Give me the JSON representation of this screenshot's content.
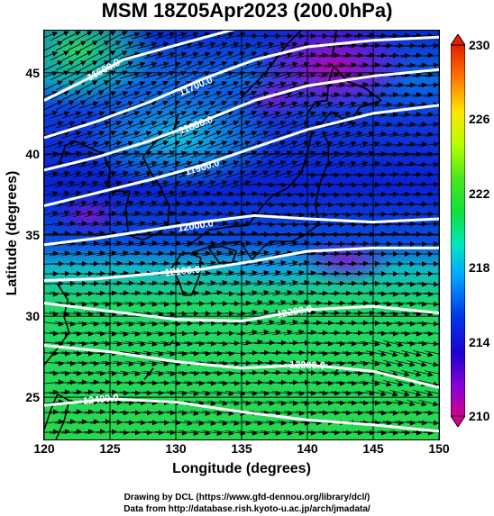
{
  "title": "MSM 18Z05Apr2023 (200.0hPa)",
  "map": {
    "xlabel": "Longitude (degrees)",
    "ylabel": "Latitude  (degrees)",
    "xlim": [
      120,
      150
    ],
    "ylim": [
      22.4,
      47.6
    ],
    "xticks": [
      "120",
      "125",
      "130",
      "135",
      "140",
      "145",
      "150"
    ],
    "yticks": [
      "25",
      "30",
      "35",
      "40",
      "45"
    ],
    "xtick_values": [
      120,
      125,
      130,
      135,
      140,
      145,
      150
    ],
    "ytick_values": [
      25,
      30,
      35,
      40,
      45
    ],
    "contours": [
      {
        "label": "11600.0",
        "points": [
          [
            120,
            43.3
          ],
          [
            123,
            44.5
          ],
          [
            126,
            45.8
          ],
          [
            130,
            46.7
          ],
          [
            135,
            47.8
          ]
        ],
        "label_at": [
          124.5,
          45.2
        ]
      },
      {
        "label": "11700.0",
        "points": [
          [
            120,
            41.0
          ],
          [
            124,
            42.0
          ],
          [
            128,
            43.2
          ],
          [
            132,
            44.6
          ],
          [
            136,
            45.8
          ],
          [
            140,
            46.6
          ],
          [
            145,
            47.0
          ],
          [
            150,
            47.2
          ]
        ],
        "label_at": [
          131.5,
          44.2
        ]
      },
      {
        "label": "11800.0",
        "points": [
          [
            120,
            39.0
          ],
          [
            124,
            39.8
          ],
          [
            128,
            40.8
          ],
          [
            132,
            42.0
          ],
          [
            136,
            43.3
          ],
          [
            140,
            44.2
          ],
          [
            145,
            44.8
          ],
          [
            150,
            45.2
          ]
        ],
        "label_at": [
          131.5,
          41.8
        ]
      },
      {
        "label": "11900.0",
        "points": [
          [
            120,
            36.8
          ],
          [
            124,
            37.6
          ],
          [
            128,
            38.4
          ],
          [
            132,
            39.3
          ],
          [
            136,
            40.4
          ],
          [
            140,
            41.5
          ],
          [
            145,
            42.5
          ],
          [
            150,
            43.0
          ]
        ],
        "label_at": [
          132.0,
          39.2
        ]
      },
      {
        "label": "12000.0",
        "points": [
          [
            120,
            34.4
          ],
          [
            124,
            34.8
          ],
          [
            128,
            35.3
          ],
          [
            132,
            35.8
          ],
          [
            136,
            36.2
          ],
          [
            140,
            36.0
          ],
          [
            145,
            35.8
          ],
          [
            150,
            36.0
          ]
        ],
        "label_at": [
          131.5,
          35.6
        ]
      },
      {
        "label": "12100.0",
        "points": [
          [
            120,
            32.2
          ],
          [
            124,
            32.3
          ],
          [
            128,
            32.6
          ],
          [
            132,
            32.9
          ],
          [
            136,
            33.4
          ],
          [
            140,
            34.0
          ],
          [
            145,
            34.2
          ],
          [
            150,
            34.2
          ]
        ],
        "label_at": [
          130.5,
          32.8
        ]
      },
      {
        "label": "12200.0",
        "points": [
          [
            120,
            30.8
          ],
          [
            125,
            30.3
          ],
          [
            130,
            29.8
          ],
          [
            135,
            29.7
          ],
          [
            140,
            30.4
          ],
          [
            145,
            30.6
          ],
          [
            150,
            30.2
          ]
        ],
        "label_at": [
          139.0,
          30.3
        ]
      },
      {
        "label": "12300.0",
        "points": [
          [
            120,
            28.2
          ],
          [
            125,
            27.8
          ],
          [
            130,
            27.2
          ],
          [
            135,
            26.8
          ],
          [
            140,
            27.0
          ],
          [
            145,
            26.6
          ],
          [
            150,
            25.6
          ]
        ],
        "label_at": [
          140.0,
          27.0
        ]
      },
      {
        "label": "12400.0",
        "points": [
          [
            120,
            24.5
          ],
          [
            125,
            24.9
          ],
          [
            130,
            24.7
          ],
          [
            135,
            24.1
          ],
          [
            140,
            23.6
          ],
          [
            145,
            23.3
          ],
          [
            150,
            22.9
          ]
        ],
        "label_at": [
          124.3,
          24.9
        ]
      }
    ],
    "coastlines": [
      [
        [
          126.5,
          37.7
        ],
        [
          126.2,
          36.6
        ],
        [
          126.4,
          35.0
        ],
        [
          127.5,
          34.7
        ],
        [
          128.6,
          35.1
        ],
        [
          129.4,
          35.6
        ],
        [
          129.5,
          36.8
        ],
        [
          128.8,
          38.0
        ],
        [
          128.0,
          39.0
        ],
        [
          127.5,
          39.8
        ],
        [
          128.5,
          40.8
        ],
        [
          129.8,
          41.3
        ],
        [
          130.2,
          42.5
        ]
      ],
      [
        [
          124.5,
          40.0
        ],
        [
          125.0,
          39.0
        ],
        [
          124.8,
          38.0
        ],
        [
          125.5,
          37.7
        ],
        [
          126.5,
          37.7
        ]
      ],
      [
        [
          121.2,
          39.5
        ],
        [
          121.6,
          40.5
        ],
        [
          122.3,
          40.8
        ],
        [
          124.5,
          40.0
        ]
      ],
      [
        [
          121.0,
          32.0
        ],
        [
          121.8,
          31.0
        ],
        [
          121.5,
          30.0
        ],
        [
          121.9,
          29.0
        ],
        [
          121.0,
          28.0
        ],
        [
          120.0,
          27.0
        ]
      ],
      [
        [
          131.0,
          33.9
        ],
        [
          131.9,
          33.6
        ],
        [
          131.8,
          32.5
        ],
        [
          131.2,
          31.3
        ],
        [
          130.6,
          31.3
        ],
        [
          130.2,
          32.2
        ],
        [
          129.7,
          33.0
        ],
        [
          130.4,
          33.8
        ],
        [
          131.0,
          33.9
        ]
      ],
      [
        [
          132.5,
          34.2
        ],
        [
          133.3,
          33.3
        ],
        [
          134.3,
          33.3
        ],
        [
          134.6,
          34.0
        ],
        [
          133.5,
          34.3
        ],
        [
          132.5,
          34.2
        ]
      ],
      [
        [
          130.9,
          34.3
        ],
        [
          132.5,
          35.3
        ],
        [
          134.0,
          35.5
        ],
        [
          135.5,
          35.6
        ],
        [
          136.5,
          36.7
        ],
        [
          137.3,
          37.4
        ],
        [
          138.5,
          37.9
        ],
        [
          139.5,
          38.8
        ],
        [
          140.0,
          40.0
        ],
        [
          140.3,
          41.2
        ]
      ],
      [
        [
          131.2,
          33.9
        ],
        [
          132.3,
          34.2
        ],
        [
          133.5,
          34.5
        ],
        [
          135.0,
          34.6
        ],
        [
          135.2,
          34.2
        ],
        [
          135.8,
          33.5
        ],
        [
          136.7,
          34.3
        ],
        [
          137.2,
          34.6
        ],
        [
          138.8,
          34.6
        ],
        [
          139.8,
          35.0
        ],
        [
          140.9,
          35.7
        ],
        [
          140.6,
          36.9
        ],
        [
          141.0,
          38.3
        ],
        [
          141.6,
          39.5
        ],
        [
          141.6,
          40.6
        ],
        [
          141.2,
          41.3
        ]
      ],
      [
        [
          140.0,
          41.4
        ],
        [
          140.0,
          42.5
        ],
        [
          140.6,
          43.2
        ],
        [
          141.5,
          43.3
        ],
        [
          141.6,
          44.4
        ],
        [
          142.0,
          45.4
        ],
        [
          143.0,
          44.5
        ],
        [
          144.5,
          44.0
        ],
        [
          145.6,
          43.3
        ],
        [
          144.0,
          42.9
        ],
        [
          143.2,
          41.9
        ],
        [
          141.8,
          42.6
        ],
        [
          140.9,
          41.7
        ],
        [
          140.0,
          41.4
        ]
      ],
      [
        [
          141.9,
          46.0
        ],
        [
          142.2,
          47.6
        ]
      ],
      [
        [
          135.0,
          43.5
        ],
        [
          136.8,
          45.0
        ],
        [
          138.5,
          46.8
        ],
        [
          139.5,
          47.6
        ]
      ],
      [
        [
          121.0,
          25.2
        ],
        [
          121.9,
          24.8
        ],
        [
          121.5,
          23.5
        ],
        [
          120.9,
          22.4
        ]
      ],
      [
        [
          120.0,
          23.0
        ],
        [
          120.5,
          24.2
        ],
        [
          121.0,
          25.2
        ]
      ],
      [
        [
          127.6,
          26.1
        ],
        [
          128.3,
          26.8
        ]
      ],
      [
        [
          129.5,
          28.2
        ],
        [
          129.8,
          28.5
        ]
      ],
      [
        [
          139.4,
          33.1
        ],
        [
          139.5,
          33.2
        ]
      ],
      [
        [
          142.2,
          26.6
        ],
        [
          142.3,
          26.7
        ]
      ]
    ],
    "fill_colors": [
      "#d2008c",
      "#8a00d6",
      "#1d00d2",
      "#0038e6",
      "#00a8ff",
      "#00e6c0",
      "#0fe13c",
      "#4be61e",
      "#b4ff00",
      "#ffe600",
      "#ff7800",
      "#e61e00"
    ]
  },
  "colorbar": {
    "min": 210,
    "max": 230,
    "labels": [
      "230",
      "226",
      "222",
      "218",
      "214",
      "210"
    ],
    "label_values": [
      230,
      226,
      222,
      218,
      214,
      210
    ]
  },
  "footer": {
    "line1": "Drawing by DCL (https://www.gfd-dennou.org/library/dcl/)",
    "line2": "Data from http://database.rish.kyoto-u.ac.jp/arch/jmadata/"
  }
}
